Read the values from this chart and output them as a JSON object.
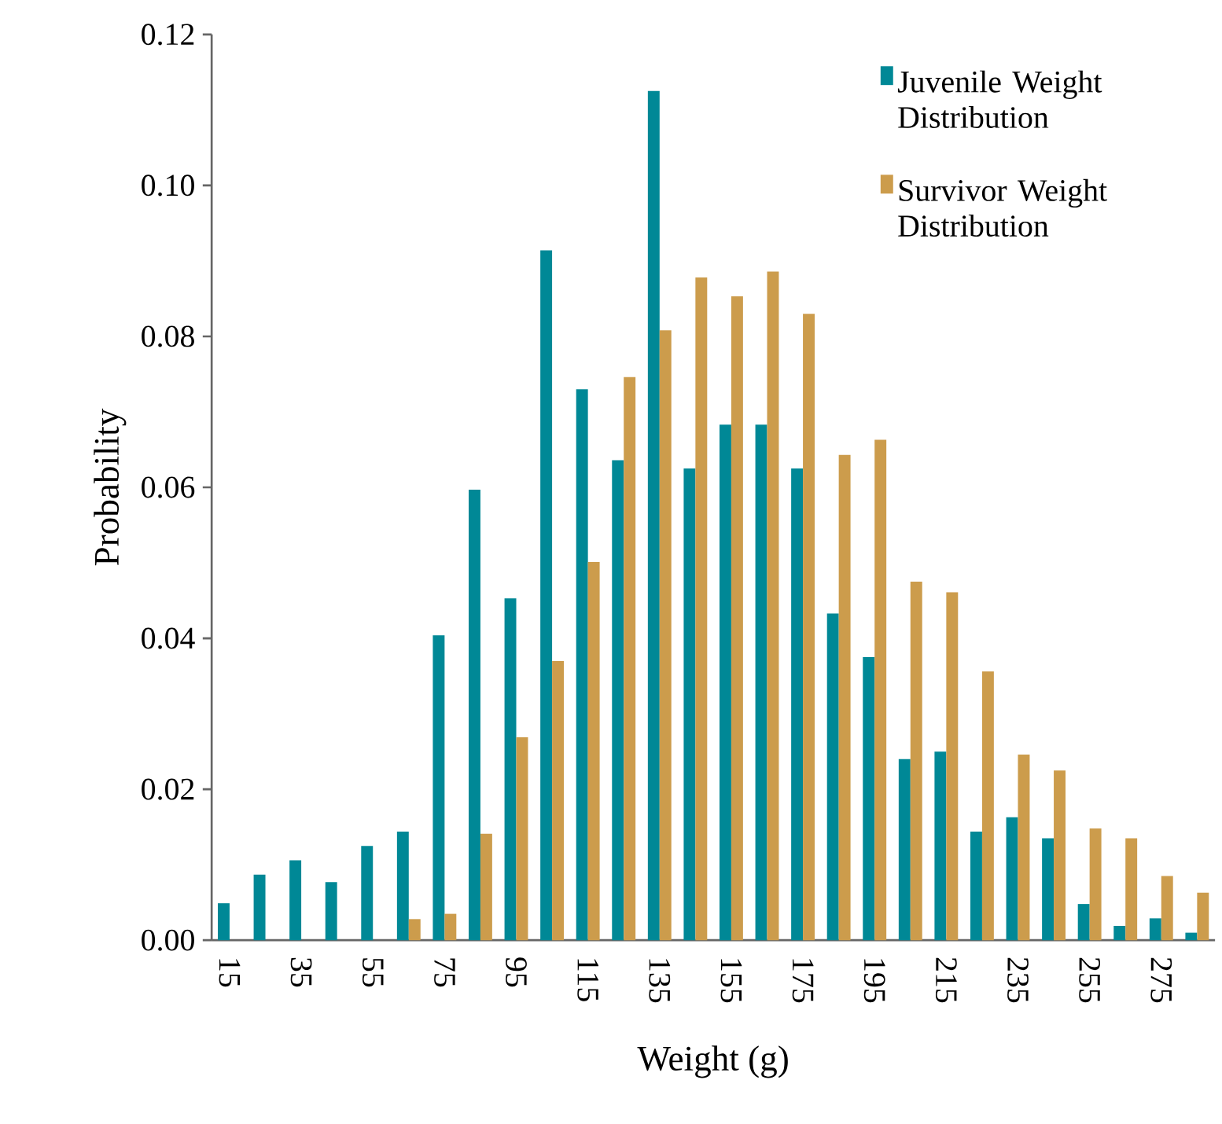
{
  "chart_data": {
    "type": "bar",
    "xlabel": "Weight (g)",
    "ylabel": "Probability",
    "categories": [
      "15",
      null,
      "35",
      null,
      "55",
      null,
      "75",
      null,
      "95",
      null,
      "115",
      null,
      "135",
      null,
      "155",
      null,
      "175",
      null,
      "195",
      null,
      "215",
      null,
      "235",
      null,
      "255",
      null,
      "275",
      null
    ],
    "series": [
      {
        "name": "Juvenile Weight Distribution",
        "color": "#008896",
        "values": [
          0.0049,
          0.0087,
          0.0106,
          0.0077,
          0.0125,
          0.0144,
          0.0404,
          0.0597,
          0.0453,
          0.0914,
          0.073,
          0.0636,
          0.1125,
          0.0625,
          0.0683,
          0.0683,
          0.0625,
          0.0433,
          0.0375,
          0.024,
          0.025,
          0.0144,
          0.0163,
          0.0135,
          0.0048,
          0.0019,
          0.0029,
          0.001
        ]
      },
      {
        "name": "Survivor Weight Distribution",
        "color": "#cc9c4c",
        "values": [
          0,
          0,
          0,
          0,
          0,
          0.0028,
          0.0035,
          0.0141,
          0.0269,
          0.037,
          0.0501,
          0.0746,
          0.0808,
          0.0878,
          0.0853,
          0.0886,
          0.083,
          0.0643,
          0.0663,
          0.0475,
          0.0461,
          0.0356,
          0.0246,
          0.0225,
          0.0148,
          0.0135,
          0.0085,
          0.0063
        ]
      }
    ],
    "ylim": [
      0,
      0.12
    ],
    "yticks": [
      {
        "value": 0,
        "label": "0.00"
      },
      {
        "value": 0.02,
        "label": "0.02"
      },
      {
        "value": 0.04,
        "label": "0.04"
      },
      {
        "value": 0.06,
        "label": "0.06"
      },
      {
        "value": 0.08,
        "label": "0.08"
      },
      {
        "value": 0.1,
        "label": "0.10"
      },
      {
        "value": 0.12,
        "label": "0.12"
      }
    ],
    "legend": "top right",
    "grid": false
  }
}
